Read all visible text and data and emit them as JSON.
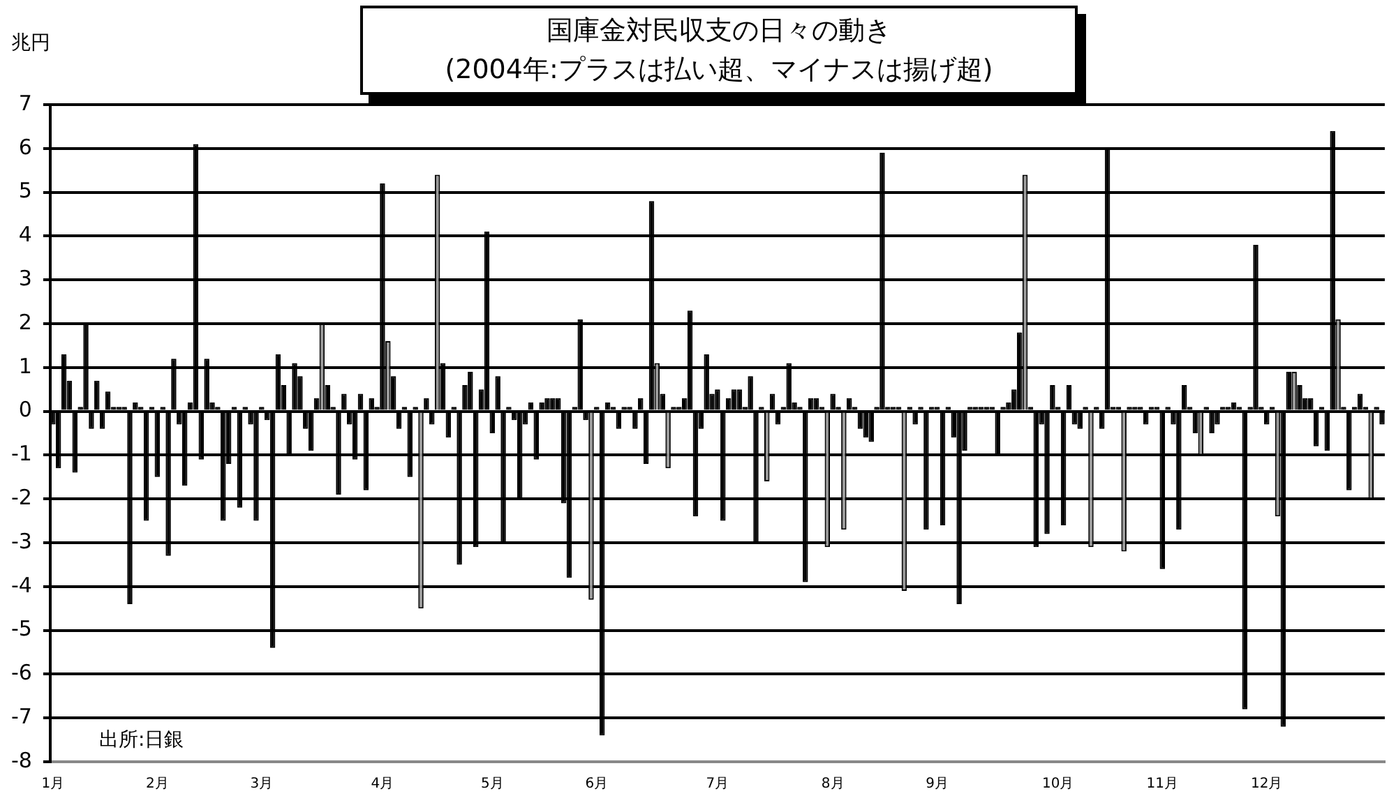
{
  "chart_data": {
    "type": "bar",
    "title": "国庫金対民収支の日々の動き",
    "subtitle": "(2004年:プラスは払い超、マイナスは揚げ超)",
    "ylabel": "兆円",
    "categories": [
      "1月",
      null,
      null,
      null,
      null,
      null,
      null,
      null,
      null,
      null,
      null,
      null,
      null,
      null,
      null,
      null,
      null,
      null,
      null,
      "2月",
      null,
      null,
      null,
      null,
      null,
      null,
      null,
      null,
      null,
      null,
      null,
      null,
      null,
      null,
      null,
      null,
      null,
      null,
      "3月",
      null,
      null,
      null,
      null,
      null,
      null,
      null,
      null,
      null,
      null,
      null,
      null,
      null,
      null,
      null,
      null,
      null,
      null,
      null,
      null,
      null,
      "4月",
      null,
      null,
      null,
      null,
      null,
      null,
      null,
      null,
      null,
      null,
      null,
      null,
      null,
      null,
      null,
      null,
      null,
      null,
      null,
      "5月",
      null,
      null,
      null,
      null,
      null,
      null,
      null,
      null,
      null,
      null,
      null,
      null,
      null,
      null,
      null,
      null,
      null,
      null,
      "6月",
      null,
      null,
      null,
      null,
      null,
      null,
      null,
      null,
      null,
      null,
      null,
      null,
      null,
      null,
      null,
      null,
      null,
      null,
      null,
      null,
      null,
      "7月",
      null,
      null,
      null,
      null,
      null,
      null,
      null,
      null,
      null,
      null,
      null,
      null,
      null,
      null,
      null,
      null,
      null,
      null,
      null,
      null,
      "8月",
      null,
      null,
      null,
      null,
      null,
      null,
      null,
      null,
      null,
      null,
      null,
      null,
      null,
      null,
      null,
      null,
      null,
      null,
      "9月",
      null,
      null,
      null,
      null,
      null,
      null,
      null,
      null,
      null,
      null,
      null,
      null,
      null,
      null,
      null,
      null,
      null,
      null,
      null,
      null,
      null,
      "10月",
      null,
      null,
      null,
      null,
      null,
      null,
      null,
      null,
      null,
      null,
      null,
      null,
      null,
      null,
      null,
      null,
      null,
      null,
      "11月",
      null,
      null,
      null,
      null,
      null,
      null,
      null,
      null,
      null,
      null,
      null,
      null,
      null,
      null,
      null,
      null,
      null,
      null,
      "12月",
      null,
      null,
      null,
      null,
      null,
      null,
      null,
      null,
      null,
      null,
      null,
      null,
      null,
      null,
      null,
      null,
      null,
      null,
      null,
      null,
      null
    ],
    "values": [
      -0.3,
      -1.3,
      1.3,
      0.7,
      -1.4,
      0.1,
      2.0,
      -0.4,
      0.7,
      -0.4,
      0.45,
      0.1,
      0.1,
      0.1,
      -4.4,
      0.2,
      0.1,
      -2.5,
      0.1,
      -1.5,
      0.1,
      -3.3,
      1.2,
      -0.3,
      -1.7,
      0.2,
      6.1,
      -1.1,
      1.2,
      0.2,
      0.1,
      -2.5,
      -1.2,
      0.1,
      -2.2,
      0.1,
      -0.3,
      -2.5,
      0.1,
      -0.2,
      -5.4,
      1.3,
      0.6,
      -1.0,
      1.1,
      0.8,
      -0.4,
      -0.9,
      0.3,
      2.0,
      0.6,
      0.1,
      -1.9,
      0.4,
      -0.3,
      -1.1,
      0.4,
      -1.8,
      0.3,
      0.1,
      5.2,
      1.6,
      0.8,
      -0.4,
      0.1,
      -1.5,
      0.1,
      -4.5,
      0.3,
      -0.3,
      5.4,
      1.1,
      -0.6,
      0.1,
      -3.5,
      0.6,
      0.9,
      -3.1,
      0.5,
      4.1,
      -0.5,
      0.8,
      -3.0,
      0.1,
      -0.2,
      -2.0,
      -0.3,
      0.2,
      -1.1,
      0.2,
      0.3,
      0.3,
      0.3,
      -2.1,
      -3.8,
      0.1,
      2.1,
      -0.2,
      -4.3,
      0.1,
      -7.4,
      0.2,
      0.1,
      -0.4,
      0.1,
      0.1,
      -0.4,
      0.3,
      -1.2,
      4.8,
      1.1,
      0.4,
      -1.3,
      0.1,
      0.1,
      0.3,
      2.3,
      -2.4,
      -0.4,
      1.3,
      0.4,
      0.5,
      -2.5,
      0.3,
      0.5,
      0.5,
      0.1,
      0.8,
      -3.0,
      0.1,
      -1.6,
      0.4,
      -0.3,
      0.1,
      1.1,
      0.2,
      0.1,
      -3.9,
      0.3,
      0.3,
      0.1,
      -3.1,
      0.4,
      0.1,
      -2.7,
      0.3,
      0.1,
      -0.4,
      -0.6,
      -0.7,
      0.1,
      5.9,
      0.1,
      0.1,
      0.1,
      -4.1,
      0.1,
      -0.3,
      0.1,
      -2.7,
      0.1,
      0.1,
      -2.6,
      0.1,
      -0.6,
      -4.4,
      -0.9,
      0.1,
      0.1,
      0.1,
      0.1,
      0.1,
      -1.0,
      0.1,
      0.2,
      0.5,
      1.8,
      5.4,
      0.1,
      -3.1,
      -0.3,
      -2.8,
      0.6,
      0.1,
      -2.6,
      0.6,
      -0.3,
      -0.4,
      0.1,
      -3.1,
      0.1,
      -0.4,
      6.0,
      0.1,
      0.1,
      -3.2,
      0.1,
      0.1,
      0.1,
      -0.3,
      0.1,
      0.1,
      -3.6,
      0.1,
      -0.3,
      -2.7,
      0.6,
      0.1,
      -0.5,
      -1.0,
      0.1,
      -0.5,
      -0.3,
      0.1,
      0.1,
      0.2,
      0.1,
      -6.8,
      0.1,
      3.8,
      0.1,
      -0.3,
      0.1,
      -2.4,
      -7.2,
      0.9,
      0.9,
      0.6,
      0.3,
      0.3,
      -0.8,
      0.1,
      -0.9,
      6.4,
      2.1,
      0.1,
      -1.8,
      0.1,
      0.4,
      0.1,
      -2.0,
      0.1,
      -0.3
    ],
    "colors": [
      "#000000",
      "#000000",
      "#000000",
      "#000000",
      "#000000",
      "#000000",
      "#000000",
      "#000000",
      "#000000",
      "#000000",
      "#000000",
      "#000000",
      "#000000",
      "#000000",
      "#000000",
      "#000000",
      "#000000",
      "#000000",
      "#000000",
      "#000000",
      "#000000",
      "#000000",
      "#000000",
      "#000000",
      "#000000",
      "#000000",
      "#000000",
      "#000000",
      "#000000",
      "#000000",
      "#000000",
      "#000000",
      "#000000",
      "#000000",
      "#000000",
      "#000000",
      "#000000",
      "#000000",
      "#000000",
      "#000000",
      "#000000",
      "#000000",
      "#000000",
      "#000000",
      "#000000",
      "#000000",
      "#000000",
      "#000000",
      "#000000",
      "#999999",
      "#000000",
      "#000000",
      "#000000",
      "#000000",
      "#000000",
      "#000000",
      "#000000",
      "#000000",
      "#000000",
      "#000000",
      "#000000",
      "#999999",
      "#000000",
      "#000000",
      "#000000",
      "#000000",
      "#000000",
      "#999999",
      "#000000",
      "#000000",
      "#999999",
      "#000000",
      "#000000",
      "#000000",
      "#000000",
      "#000000",
      "#000000",
      "#000000",
      "#000000",
      "#000000",
      "#000000",
      "#000000",
      "#000000",
      "#000000",
      "#000000",
      "#000000",
      "#000000",
      "#000000",
      "#000000",
      "#000000",
      "#000000",
      "#000000",
      "#000000",
      "#000000",
      "#000000",
      "#000000",
      "#000000",
      "#000000",
      "#999999",
      "#000000",
      "#000000",
      "#000000",
      "#000000",
      "#000000",
      "#000000",
      "#000000",
      "#000000",
      "#000000",
      "#000000",
      "#000000",
      "#999999",
      "#000000",
      "#999999",
      "#000000",
      "#000000",
      "#000000",
      "#000000",
      "#000000",
      "#000000",
      "#000000",
      "#000000",
      "#000000",
      "#000000",
      "#000000",
      "#000000",
      "#000000",
      "#000000",
      "#000000",
      "#000000",
      "#000000",
      "#999999",
      "#000000",
      "#000000",
      "#000000",
      "#000000",
      "#000000",
      "#000000",
      "#000000",
      "#000000",
      "#000000",
      "#000000",
      "#999999",
      "#000000",
      "#000000",
      "#999999",
      "#000000",
      "#000000",
      "#000000",
      "#000000",
      "#000000",
      "#000000",
      "#000000",
      "#000000",
      "#000000",
      "#000000",
      "#999999",
      "#000000",
      "#000000",
      "#000000",
      "#000000",
      "#000000",
      "#000000",
      "#000000",
      "#000000",
      "#000000",
      "#000000",
      "#000000",
      "#000000",
      "#000000",
      "#000000",
      "#000000",
      "#000000",
      "#000000",
      "#000000",
      "#000000",
      "#000000",
      "#000000",
      "#999999",
      "#000000",
      "#000000",
      "#000000",
      "#000000",
      "#000000",
      "#000000",
      "#000000",
      "#000000",
      "#000000",
      "#000000",
      "#000000",
      "#999999",
      "#000000",
      "#000000",
      "#000000",
      "#000000",
      "#000000",
      "#999999",
      "#000000",
      "#000000",
      "#000000",
      "#000000",
      "#000000",
      "#000000",
      "#000000",
      "#000000",
      "#000000",
      "#000000",
      "#000000",
      "#000000",
      "#000000",
      "#999999",
      "#000000",
      "#000000",
      "#000000",
      "#000000",
      "#000000",
      "#000000",
      "#000000",
      "#000000",
      "#000000",
      "#000000",
      "#000000",
      "#000000",
      "#000000",
      "#999999",
      "#000000",
      "#000000",
      "#999999",
      "#000000",
      "#000000",
      "#000000",
      "#000000",
      "#000000",
      "#000000",
      "#000000",
      "#999999",
      "#000000",
      "#000000",
      "#000000",
      "#000000",
      "#000000",
      "#999999",
      "#000000",
      "#000000"
    ],
    "ylim": [
      -8,
      7
    ],
    "yticks": [
      -8,
      -7,
      -6,
      -5,
      -4,
      -3,
      -2,
      -1,
      0,
      1,
      2,
      3,
      4,
      5,
      6,
      7
    ],
    "grid": "y",
    "annotations": [
      "出所:日銀"
    ]
  }
}
